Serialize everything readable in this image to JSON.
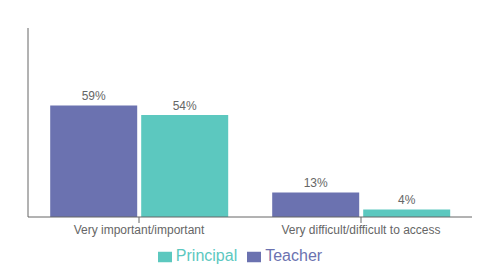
{
  "chart_data": {
    "type": "bar",
    "categories": [
      "Very important/important",
      "Very difficult/difficult to access"
    ],
    "series": [
      {
        "name": "Teacher",
        "color": "#6b72b0",
        "values": [
          59,
          13
        ],
        "value_labels": [
          "59%",
          "13%"
        ]
      },
      {
        "name": "Principal",
        "color": "#5cc8bf",
        "values": [
          54,
          4
        ],
        "value_labels": [
          "54%",
          "4%"
        ]
      }
    ],
    "ylim": [
      0,
      100
    ],
    "grid": false,
    "legend": "bottom",
    "data_labels": true,
    "tick_labels": "x"
  }
}
